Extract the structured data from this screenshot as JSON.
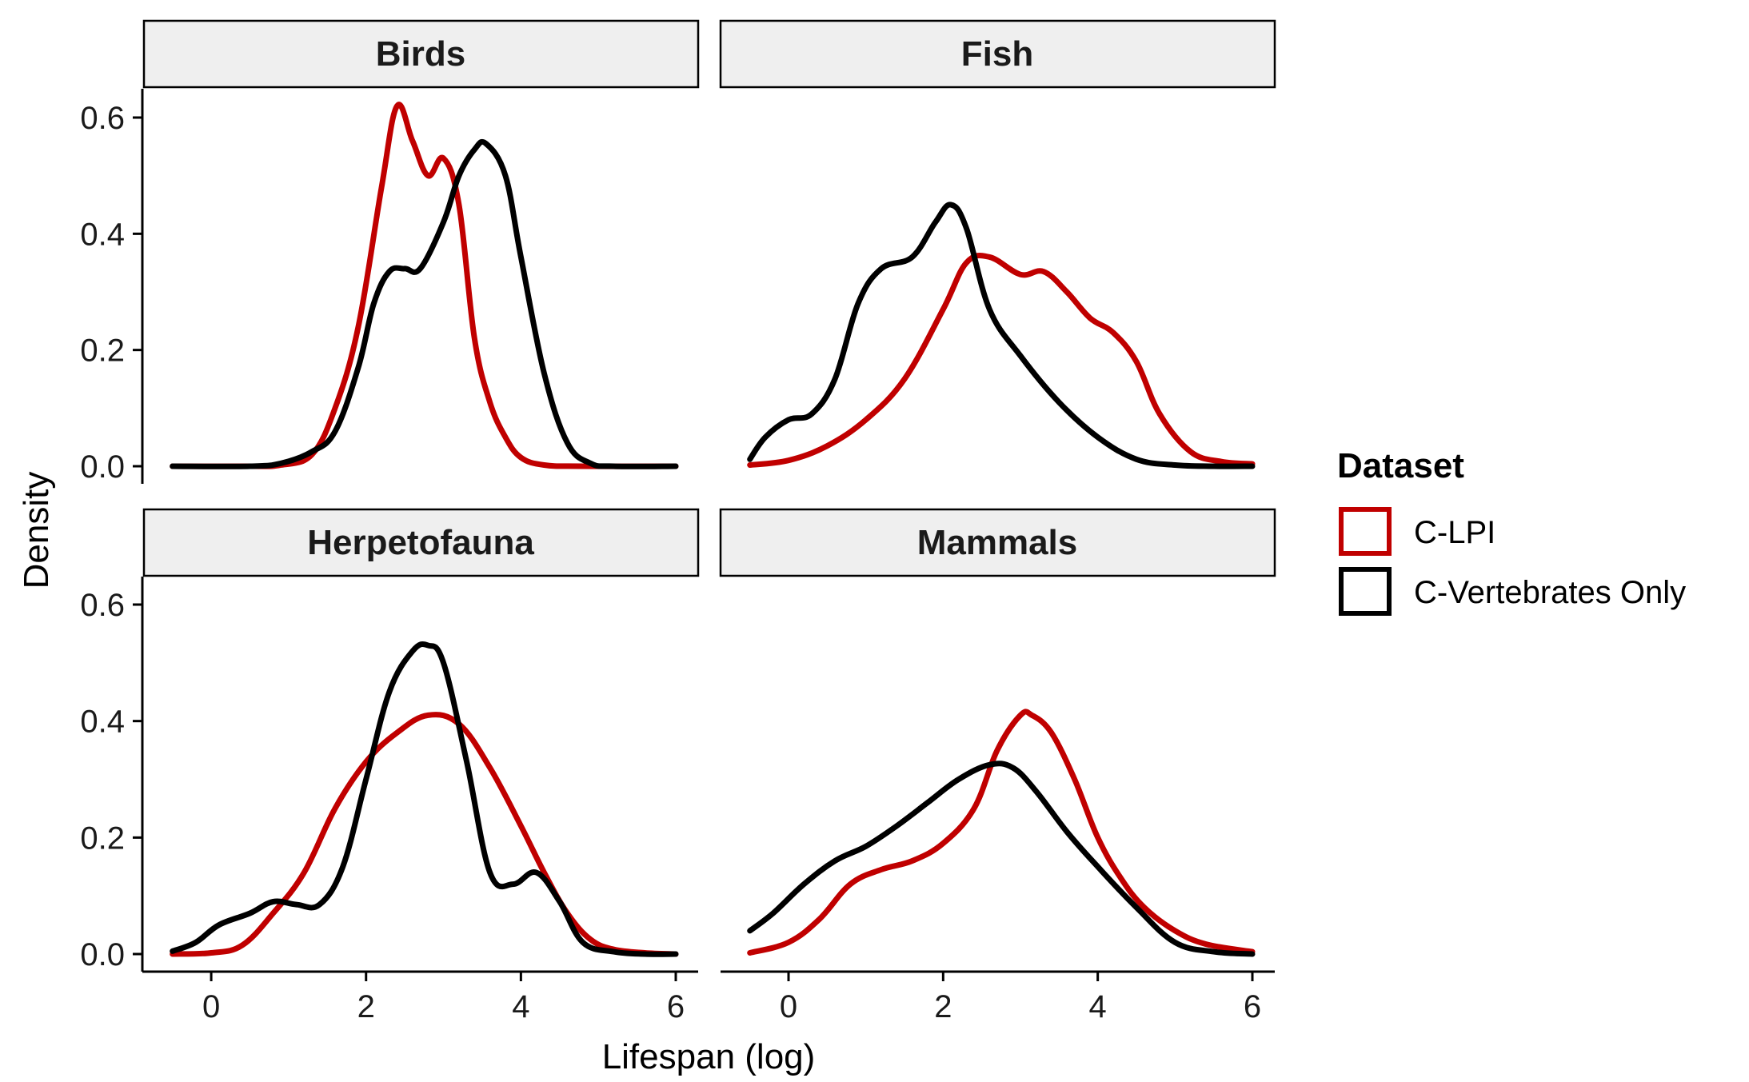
{
  "chart_data": {
    "type": "line",
    "subtype": "density-facets",
    "xlabel": "Lifespan (log)",
    "ylabel": "Density",
    "xlim": [
      -0.6,
      6.0
    ],
    "ylim": [
      0.0,
      0.6
    ],
    "x_ticks": [
      0,
      2,
      4,
      6
    ],
    "x_tick_labels": [
      "0",
      "2",
      "4",
      "6"
    ],
    "y_ticks": [
      0.0,
      0.2,
      0.4,
      0.6
    ],
    "y_tick_labels": [
      "0.0",
      "0.2",
      "0.4",
      "0.6"
    ],
    "grid": false,
    "legend": {
      "title": "Dataset",
      "placement": "right",
      "entries": [
        {
          "label": "C-LPI",
          "color": "#c00000"
        },
        {
          "label": "C-Vertebrates Only",
          "color": "#000000"
        }
      ]
    },
    "panels": [
      {
        "title": "Birds",
        "series": [
          {
            "name": "C-LPI",
            "color": "#c00000",
            "x": [
              -0.5,
              0.5,
              0.9,
              1.3,
              1.6,
              1.9,
              2.2,
              2.4,
              2.6,
              2.8,
              3.0,
              3.2,
              3.4,
              3.6,
              3.8,
              4.0,
              4.3,
              4.8,
              6.0
            ],
            "y": [
              0.0,
              0.0,
              0.002,
              0.02,
              0.1,
              0.24,
              0.48,
              0.62,
              0.56,
              0.5,
              0.53,
              0.45,
              0.22,
              0.11,
              0.05,
              0.015,
              0.002,
              0.0,
              0.0
            ]
          },
          {
            "name": "C-Vertebrates Only",
            "color": "#000000",
            "x": [
              -0.5,
              0.5,
              0.9,
              1.3,
              1.6,
              1.9,
              2.1,
              2.3,
              2.5,
              2.7,
              3.0,
              3.2,
              3.4,
              3.55,
              3.8,
              4.0,
              4.3,
              4.6,
              4.9,
              5.2,
              6.0
            ],
            "y": [
              0.0,
              0.0,
              0.005,
              0.025,
              0.06,
              0.17,
              0.28,
              0.335,
              0.34,
              0.34,
              0.42,
              0.5,
              0.545,
              0.555,
              0.5,
              0.36,
              0.16,
              0.04,
              0.005,
              0.0,
              0.0
            ]
          }
        ]
      },
      {
        "title": "Fish",
        "series": [
          {
            "name": "C-LPI",
            "color": "#c00000",
            "x": [
              -0.5,
              0.0,
              0.5,
              1.0,
              1.5,
              2.0,
              2.3,
              2.6,
              3.0,
              3.3,
              3.6,
              3.9,
              4.2,
              4.5,
              4.8,
              5.2,
              5.6,
              6.0
            ],
            "y": [
              0.002,
              0.01,
              0.035,
              0.08,
              0.15,
              0.27,
              0.35,
              0.36,
              0.33,
              0.335,
              0.3,
              0.255,
              0.23,
              0.18,
              0.09,
              0.025,
              0.008,
              0.004
            ]
          },
          {
            "name": "C-Vertebrates Only",
            "color": "#000000",
            "x": [
              -0.5,
              -0.3,
              0.0,
              0.3,
              0.6,
              0.9,
              1.2,
              1.6,
              1.9,
              2.1,
              2.3,
              2.6,
              3.0,
              3.5,
              4.0,
              4.5,
              5.0,
              5.5,
              6.0
            ],
            "y": [
              0.012,
              0.05,
              0.08,
              0.09,
              0.15,
              0.28,
              0.34,
              0.36,
              0.42,
              0.45,
              0.41,
              0.27,
              0.19,
              0.11,
              0.05,
              0.012,
              0.002,
              0.0,
              0.0
            ]
          }
        ]
      },
      {
        "title": "Herpetofauna",
        "series": [
          {
            "name": "C-LPI",
            "color": "#c00000",
            "x": [
              -0.5,
              0.0,
              0.4,
              0.8,
              1.2,
              1.6,
              2.0,
              2.4,
              2.8,
              3.2,
              3.6,
              4.0,
              4.3,
              4.6,
              4.9,
              5.2,
              5.6,
              6.0
            ],
            "y": [
              0.0,
              0.002,
              0.015,
              0.07,
              0.14,
              0.25,
              0.33,
              0.38,
              0.41,
              0.395,
              0.32,
              0.22,
              0.14,
              0.07,
              0.025,
              0.008,
              0.002,
              0.0
            ]
          },
          {
            "name": "C-Vertebrates Only",
            "color": "#000000",
            "x": [
              -0.5,
              -0.2,
              0.1,
              0.5,
              0.8,
              1.1,
              1.4,
              1.7,
              2.0,
              2.3,
              2.6,
              2.8,
              3.0,
              3.3,
              3.6,
              3.9,
              4.2,
              4.5,
              4.8,
              5.2,
              5.6,
              6.0
            ],
            "y": [
              0.005,
              0.02,
              0.05,
              0.07,
              0.09,
              0.085,
              0.085,
              0.15,
              0.3,
              0.45,
              0.52,
              0.53,
              0.5,
              0.33,
              0.14,
              0.12,
              0.14,
              0.09,
              0.02,
              0.004,
              0.0,
              0.0
            ]
          }
        ]
      },
      {
        "title": "Mammals",
        "series": [
          {
            "name": "C-LPI",
            "color": "#c00000",
            "x": [
              -0.5,
              0.0,
              0.4,
              0.8,
              1.2,
              1.6,
              2.0,
              2.4,
              2.7,
              3.0,
              3.15,
              3.4,
              3.7,
              4.0,
              4.3,
              4.6,
              5.0,
              5.4,
              6.0
            ],
            "y": [
              0.002,
              0.02,
              0.06,
              0.12,
              0.145,
              0.16,
              0.19,
              0.25,
              0.35,
              0.41,
              0.41,
              0.38,
              0.3,
              0.2,
              0.13,
              0.08,
              0.04,
              0.017,
              0.004
            ]
          },
          {
            "name": "C-Vertebrates Only",
            "color": "#000000",
            "x": [
              -0.5,
              -0.2,
              0.2,
              0.6,
              1.0,
              1.4,
              1.8,
              2.2,
              2.6,
              2.9,
              3.2,
              3.6,
              4.0,
              4.5,
              5.0,
              5.5,
              6.0
            ],
            "y": [
              0.04,
              0.07,
              0.12,
              0.16,
              0.185,
              0.22,
              0.26,
              0.3,
              0.325,
              0.32,
              0.28,
              0.21,
              0.15,
              0.08,
              0.02,
              0.004,
              0.0
            ]
          }
        ]
      }
    ]
  }
}
